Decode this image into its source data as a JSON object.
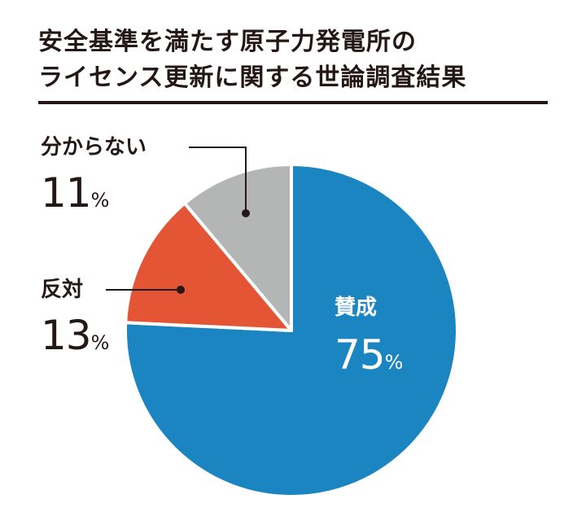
{
  "chart_data": {
    "type": "pie",
    "title_lines": [
      "安全基準を満たす原子力発電所の",
      "ライセンス更新に関する世論調査結果"
    ],
    "unit": "%",
    "slices": [
      {
        "label": "賛成",
        "value": 75,
        "color": "#1a85c1"
      },
      {
        "label": "反対",
        "value": 13,
        "color": "#e35535"
      },
      {
        "label": "分からない",
        "value": 11,
        "color": "#b4b5b5"
      }
    ],
    "start": "bottom-left, clockwise",
    "legend": "callouts"
  }
}
